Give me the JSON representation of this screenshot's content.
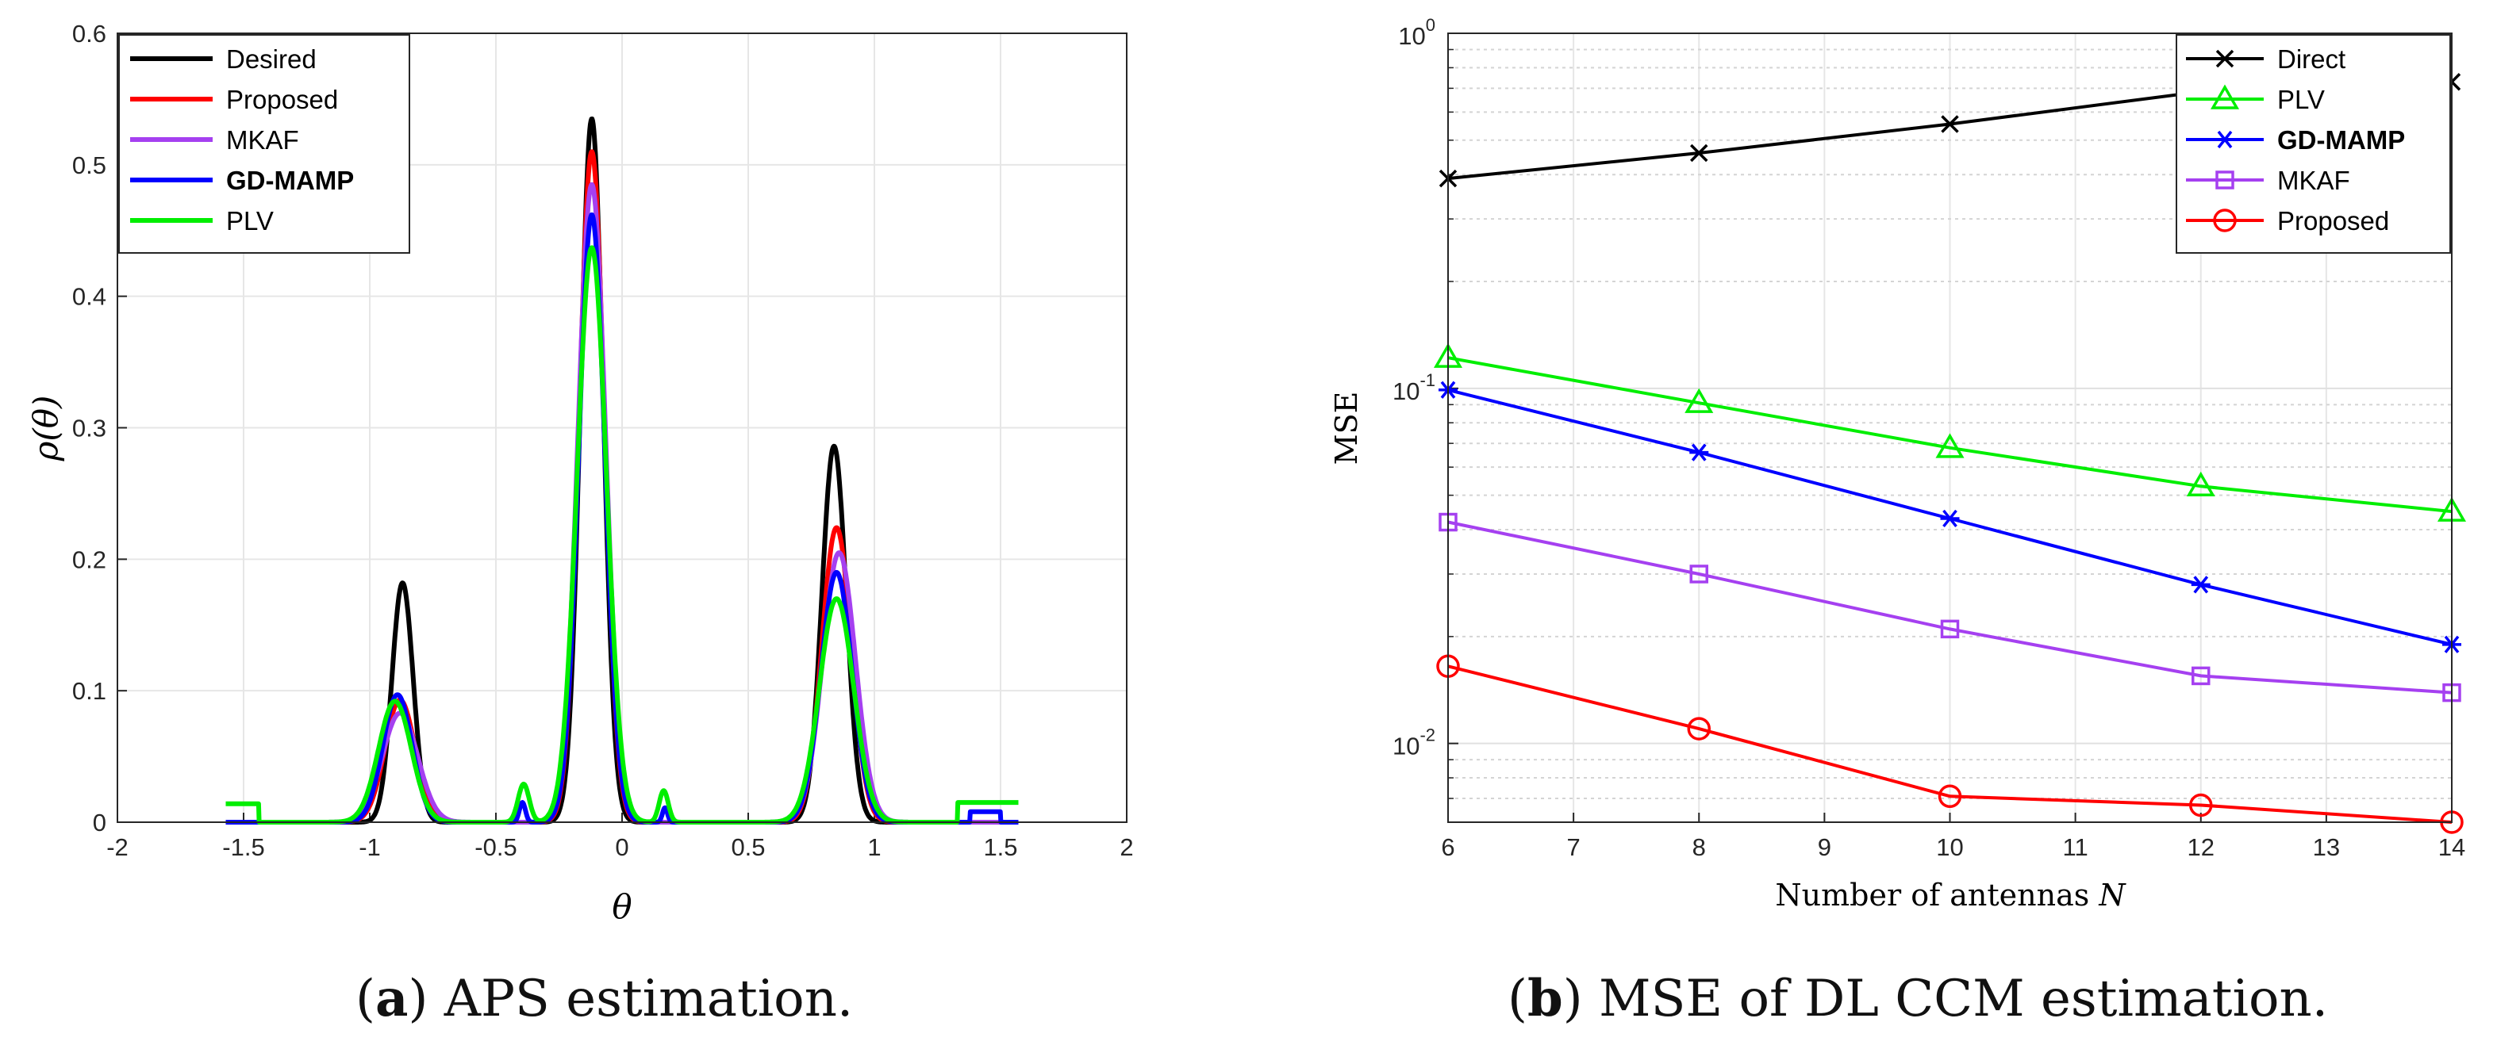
{
  "chart_data": [
    {
      "type": "line",
      "panel": "a",
      "caption_tag": "a",
      "caption_text": "APS estimation.",
      "title": "",
      "xlabel": "θ",
      "ylabel": "ρ(θ)",
      "xlim": [
        -2,
        2
      ],
      "ylim": [
        0,
        0.6
      ],
      "xticks": [
        -2,
        -1.5,
        -1,
        -0.5,
        0,
        0.5,
        1,
        1.5,
        2
      ],
      "xtick_labels": [
        "-2",
        "-1.5",
        "-1",
        "-0.5",
        "0",
        "0.5",
        "1",
        "1.5",
        "2"
      ],
      "yticks": [
        0,
        0.1,
        0.2,
        0.3,
        0.4,
        0.5,
        0.6
      ],
      "ytick_labels": [
        "0",
        "0.1",
        "0.2",
        "0.3",
        "0.4",
        "0.5",
        "0.6"
      ],
      "grid": true,
      "legend_position": "top-left",
      "x_domain": [
        -1.5708,
        1.5708
      ],
      "series": [
        {
          "name": "Desired",
          "color": "#000000",
          "peaks": [
            {
              "center": -0.87,
              "height": 0.182,
              "width": 0.042
            },
            {
              "center": -0.12,
              "height": 0.535,
              "width": 0.045
            },
            {
              "center": 0.84,
              "height": 0.286,
              "width": 0.048
            }
          ],
          "edge_features": []
        },
        {
          "name": "Proposed",
          "color": "#ff0000",
          "peaks": [
            {
              "center": -0.88,
              "height": 0.093,
              "width": 0.06
            },
            {
              "center": -0.12,
              "height": 0.51,
              "width": 0.05
            },
            {
              "center": 0.85,
              "height": 0.224,
              "width": 0.058
            }
          ],
          "edge_features": []
        },
        {
          "name": "MKAF",
          "color": "#a540f0",
          "peaks": [
            {
              "center": -0.88,
              "height": 0.083,
              "width": 0.07
            },
            {
              "center": -0.12,
              "height": 0.485,
              "width": 0.055
            },
            {
              "center": 0.86,
              "height": 0.205,
              "width": 0.065
            }
          ],
          "edge_features": []
        },
        {
          "name": "GD-MAMP",
          "color": "#0000ff",
          "peaks": [
            {
              "center": -0.89,
              "height": 0.097,
              "width": 0.058
            },
            {
              "center": -0.12,
              "height": 0.462,
              "width": 0.052
            },
            {
              "center": 0.85,
              "height": 0.19,
              "width": 0.062
            },
            {
              "center": -0.395,
              "height": 0.015,
              "width": 0.012
            },
            {
              "center": 0.17,
              "height": 0.011,
              "width": 0.01
            }
          ],
          "edge_features": [
            {
              "from": 1.38,
              "to": 1.5,
              "height": 0.008
            }
          ]
        },
        {
          "name": "PLV",
          "color": "#00ee00",
          "peaks": [
            {
              "center": -0.9,
              "height": 0.092,
              "width": 0.065
            },
            {
              "center": -0.12,
              "height": 0.437,
              "width": 0.058
            },
            {
              "center": 0.85,
              "height": 0.17,
              "width": 0.068
            },
            {
              "center": -0.39,
              "height": 0.029,
              "width": 0.022
            },
            {
              "center": 0.165,
              "height": 0.024,
              "width": 0.018
            }
          ],
          "edge_features": [
            {
              "from": -1.5708,
              "to": -1.44,
              "height": 0.014
            },
            {
              "from": 1.33,
              "to": 1.5708,
              "height": 0.015
            }
          ]
        }
      ]
    },
    {
      "type": "line",
      "panel": "b",
      "caption_tag": "b",
      "caption_text": "MSE of DL CCM estimation.",
      "title": "",
      "xlabel": "Number of antennas N",
      "ylabel": "MSE",
      "xscale": "linear",
      "yscale": "log",
      "xlim": [
        6,
        14
      ],
      "ylim": [
        0.006,
        1
      ],
      "xticks": [
        6,
        7,
        8,
        9,
        10,
        11,
        12,
        13,
        14
      ],
      "xtick_labels": [
        "6",
        "7",
        "8",
        "9",
        "10",
        "11",
        "12",
        "13",
        "14"
      ],
      "yticks": [
        0.01,
        0.1,
        1
      ],
      "ytick_labels": [
        "10^-2",
        "10^-1",
        "10^0"
      ],
      "grid": true,
      "legend_position": "top-right",
      "x": [
        6,
        8,
        10,
        12,
        14
      ],
      "series": [
        {
          "name": "Direct",
          "color": "#000000",
          "marker": "x",
          "values": [
            0.39,
            0.46,
            0.555,
            0.685,
            0.73
          ]
        },
        {
          "name": "PLV",
          "color": "#00ee00",
          "marker": "triangle",
          "values": [
            0.122,
            0.091,
            0.068,
            0.053,
            0.045
          ]
        },
        {
          "name": "GD-MAMP",
          "color": "#0000ff",
          "marker": "asterisk",
          "values": [
            0.099,
            0.066,
            0.043,
            0.028,
            0.019
          ]
        },
        {
          "name": "MKAF",
          "color": "#a540f0",
          "marker": "square",
          "values": [
            0.042,
            0.03,
            0.021,
            0.0155,
            0.0139
          ]
        },
        {
          "name": "Proposed",
          "color": "#ff0000",
          "marker": "circle",
          "values": [
            0.0165,
            0.011,
            0.0071,
            0.0067,
            0.006
          ]
        }
      ]
    }
  ]
}
